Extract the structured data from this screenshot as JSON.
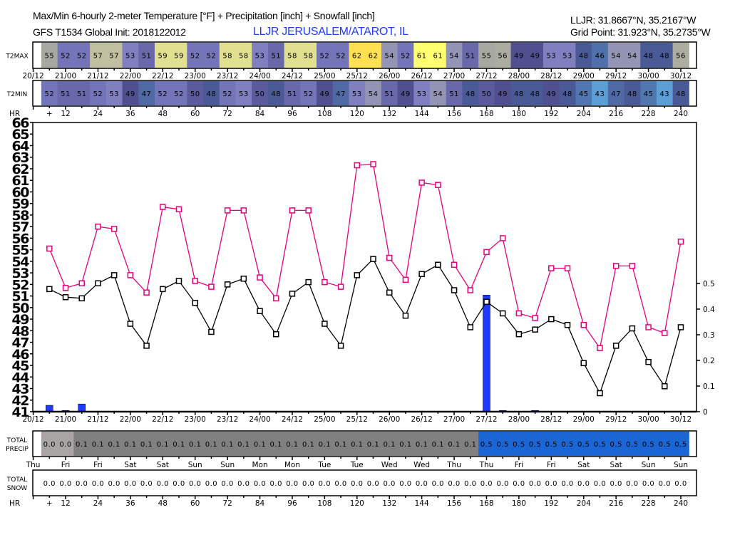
{
  "header": {
    "title": "Max/Min 6-hourly 2-meter Temperature [°F] + Precipitation [inch] + Snowfall [inch]",
    "model": "GFS T1534 Global Init: 2018122012",
    "station": "LLJR JERUSALEM/ATAROT, IL",
    "station_coords": "LLJR: 31.8667°N, 35.2167°W",
    "grid_point": "Grid Point: 31.923°N, 35.2735°W"
  },
  "colors": {
    "max_line": "#e8007a",
    "min_line": "#000000",
    "precip_bar": "#1e3cff",
    "precip_low": "#a9a5a5",
    "precip_mid": "#808080",
    "precip_high": "#1a66d4"
  },
  "chart_data": {
    "type": "line",
    "x_hours": [
      6,
      12,
      18,
      24,
      30,
      36,
      42,
      48,
      54,
      60,
      66,
      72,
      78,
      84,
      90,
      96,
      102,
      108,
      114,
      120,
      126,
      132,
      138,
      144,
      150,
      156,
      162,
      168,
      174,
      180,
      186,
      192,
      198,
      204,
      210,
      216,
      222,
      228,
      234,
      240
    ],
    "xlim": [
      0,
      240
    ],
    "ylim": [
      41,
      66
    ],
    "y_ticks": [
      "41",
      "42",
      "43",
      "44",
      "45",
      "46",
      "47",
      "48",
      "49",
      "50",
      "51",
      "52",
      "53",
      "54",
      "55",
      "56",
      "57",
      "58",
      "59",
      "60",
      "61",
      "62",
      "63",
      "64",
      "65",
      "66"
    ],
    "y2lim": [
      0,
      0.5
    ],
    "y2_ticks": [
      "0",
      "0.1",
      "0.2",
      "0.3",
      "0.4",
      "0.5"
    ],
    "date_ticks": [
      "20/12",
      "21/00",
      "21/12",
      "22/00",
      "22/12",
      "23/00",
      "23/12",
      "24/00",
      "24/12",
      "25/00",
      "25/12",
      "26/00",
      "26/12",
      "27/00",
      "27/12",
      "28/00",
      "28/12",
      "29/00",
      "29/12",
      "30/00",
      "30/12"
    ],
    "day_ticks": [
      "Thu",
      "Fri",
      "Fri",
      "Sat",
      "Sat",
      "Sun",
      "Sun",
      "Mon",
      "Mon",
      "Tue",
      "Tue",
      "Wed",
      "Wed",
      "Thu",
      "Thu",
      "Fri",
      "Fri",
      "Sat",
      "Sat",
      "Sun",
      "Sun"
    ],
    "hour_ticks": [
      "+",
      "12",
      "24",
      "36",
      "48",
      "60",
      "72",
      "84",
      "96",
      "108",
      "120",
      "132",
      "144",
      "156",
      "168",
      "180",
      "192",
      "204",
      "216",
      "228",
      "240"
    ],
    "hr_label": "HR",
    "series": [
      {
        "name": "Max temperature",
        "values": [
          55.1,
          51.7,
          52.1,
          57.0,
          56.8,
          52.8,
          51.3,
          58.7,
          58.5,
          52.3,
          51.8,
          58.4,
          58.4,
          52.6,
          50.8,
          58.4,
          58.4,
          52.2,
          51.8,
          62.3,
          62.4,
          54.3,
          52.4,
          60.8,
          60.6,
          53.7,
          51.5,
          54.8,
          56.0,
          49.5,
          49.1,
          53.4,
          53.4,
          48.5,
          46.5,
          53.6,
          53.6,
          48.3,
          47.8,
          55.7
        ]
      },
      {
        "name": "Min temperature",
        "values": [
          51.6,
          50.9,
          50.8,
          52.1,
          52.8,
          48.6,
          46.7,
          51.6,
          52.3,
          50.4,
          47.9,
          52.0,
          52.5,
          49.7,
          47.7,
          51.2,
          52.2,
          48.6,
          46.7,
          52.8,
          54.2,
          51.3,
          49.3,
          52.9,
          53.7,
          51.5,
          48.3,
          50.5,
          49.5,
          47.7,
          48.1,
          49.0,
          48.5,
          45.2,
          42.6,
          46.7,
          48.2,
          45.3,
          43.2,
          48.3
        ]
      },
      {
        "name": "6-hourly precipitation [inch]",
        "values": [
          0.025,
          0.005,
          0.03,
          0,
          0,
          0,
          0,
          0,
          0,
          0,
          0,
          0,
          0,
          0,
          0,
          0,
          0,
          0,
          0,
          0,
          0,
          0,
          0,
          0,
          0,
          0,
          0,
          0.455,
          0.005,
          0,
          0.005,
          0,
          0,
          0,
          0,
          0,
          0,
          0,
          0,
          0
        ]
      }
    ]
  },
  "tables": {
    "t2max": {
      "label": "T2MAX",
      "values": [
        "55",
        "52",
        "52",
        "57",
        "57",
        "53",
        "51",
        "59",
        "59",
        "52",
        "52",
        "58",
        "58",
        "53",
        "51",
        "58",
        "58",
        "52",
        "52",
        "62",
        "62",
        "54",
        "52",
        "61",
        "61",
        "54",
        "51",
        "55",
        "56",
        "49",
        "49",
        "53",
        "53",
        "48",
        "46",
        "54",
        "54",
        "48",
        "48",
        "56"
      ]
    },
    "t2min": {
      "label": "T2MIN",
      "values": [
        "52",
        "51",
        "51",
        "52",
        "53",
        "49",
        "47",
        "52",
        "52",
        "50",
        "48",
        "52",
        "53",
        "50",
        "48",
        "51",
        "52",
        "49",
        "47",
        "53",
        "54",
        "51",
        "49",
        "53",
        "54",
        "51",
        "48",
        "50",
        "49",
        "48",
        "48",
        "49",
        "48",
        "45",
        "43",
        "47",
        "48",
        "45",
        "43",
        "48"
      ]
    },
    "total_precip": {
      "label1": "TOTAL",
      "label2": "PRECIP",
      "values": [
        "0.0",
        "0.0",
        "0.1",
        "0.1",
        "0.1",
        "0.1",
        "0.1",
        "0.1",
        "0.1",
        "0.1",
        "0.1",
        "0.1",
        "0.1",
        "0.1",
        "0.1",
        "0.1",
        "0.1",
        "0.1",
        "0.1",
        "0.1",
        "0.1",
        "0.1",
        "0.1",
        "0.1",
        "0.1",
        "0.1",
        "0.1",
        "0.5",
        "0.5",
        "0.5",
        "0.5",
        "0.5",
        "0.5",
        "0.5",
        "0.5",
        "0.5",
        "0.5",
        "0.5",
        "0.5",
        "0.5"
      ]
    },
    "total_snow": {
      "label1": "TOTAL",
      "label2": "SNOW",
      "values": [
        "0.0",
        "0.0",
        "0.0",
        "0.0",
        "0.0",
        "0.0",
        "0.0",
        "0.0",
        "0.0",
        "0.0",
        "0.0",
        "0.0",
        "0.0",
        "0.0",
        "0.0",
        "0.0",
        "0.0",
        "0.0",
        "0.0",
        "0.0",
        "0.0",
        "0.0",
        "0.0",
        "0.0",
        "0.0",
        "0.0",
        "0.0",
        "0.0",
        "0.0",
        "0.0",
        "0.0",
        "0.0",
        "0.0",
        "0.0",
        "0.0",
        "0.0",
        "0.0",
        "0.0",
        "0.0",
        "0.0"
      ]
    }
  }
}
